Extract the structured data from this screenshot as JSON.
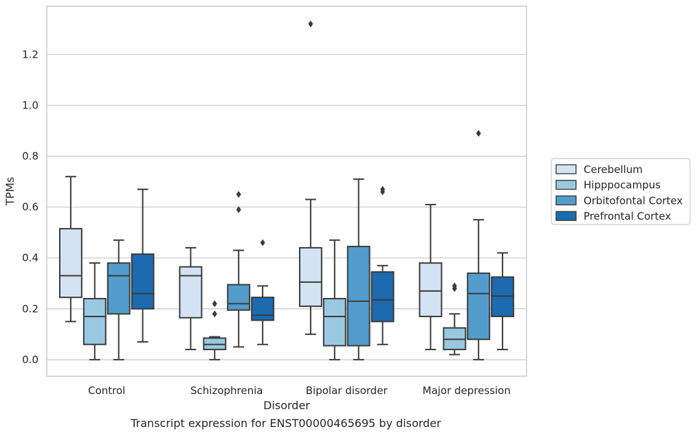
{
  "chart_data": {
    "type": "box",
    "title": "",
    "caption": "Transcript expression for ENST00000465695 by disorder",
    "xlabel": "Disorder",
    "ylabel": "TPMs",
    "ylim": [
      -0.065,
      1.39
    ],
    "yticks": [
      "0.0",
      "0.2",
      "0.4",
      "0.6",
      "0.8",
      "1.0",
      "1.2"
    ],
    "grid": "horizontal",
    "legend_position": "right",
    "categories": [
      "Control",
      "Schizophrenia",
      "Bipolar disorder",
      "Major depression"
    ],
    "series": [
      {
        "name": "Cerebellum",
        "color": "#d3e3f3",
        "boxes": [
          {
            "min": 0.15,
            "q1": 0.245,
            "median": 0.33,
            "q3": 0.515,
            "max": 0.72,
            "outliers": []
          },
          {
            "min": 0.04,
            "q1": 0.165,
            "median": 0.33,
            "q3": 0.365,
            "max": 0.44,
            "outliers": []
          },
          {
            "min": 0.1,
            "q1": 0.21,
            "median": 0.305,
            "q3": 0.44,
            "max": 0.63,
            "outliers": [
              1.32
            ]
          },
          {
            "min": 0.04,
            "q1": 0.17,
            "median": 0.27,
            "q3": 0.38,
            "max": 0.61,
            "outliers": []
          }
        ]
      },
      {
        "name": "Hipppocampus",
        "color": "#9ac8e0",
        "boxes": [
          {
            "min": 0.0,
            "q1": 0.06,
            "median": 0.17,
            "q3": 0.24,
            "max": 0.38,
            "outliers": []
          },
          {
            "min": 0.0,
            "q1": 0.04,
            "median": 0.06,
            "q3": 0.085,
            "max": 0.09,
            "outliers": [
              0.18,
              0.22
            ]
          },
          {
            "min": 0.0,
            "q1": 0.055,
            "median": 0.17,
            "q3": 0.24,
            "max": 0.47,
            "outliers": []
          },
          {
            "min": 0.02,
            "q1": 0.04,
            "median": 0.08,
            "q3": 0.125,
            "max": 0.18,
            "outliers": [
              0.28,
              0.29
            ]
          }
        ]
      },
      {
        "name": "Orbitofontal Cortex",
        "color": "#529dcc",
        "boxes": [
          {
            "min": 0.0,
            "q1": 0.18,
            "median": 0.33,
            "q3": 0.38,
            "max": 0.47,
            "outliers": []
          },
          {
            "min": 0.05,
            "q1": 0.195,
            "median": 0.22,
            "q3": 0.295,
            "max": 0.43,
            "outliers": [
              0.59,
              0.65
            ]
          },
          {
            "min": 0.0,
            "q1": 0.055,
            "median": 0.23,
            "q3": 0.445,
            "max": 0.71,
            "outliers": []
          },
          {
            "min": 0.0,
            "q1": 0.08,
            "median": 0.26,
            "q3": 0.34,
            "max": 0.55,
            "outliers": [
              0.89
            ]
          }
        ]
      },
      {
        "name": "Prefrontal Cortex",
        "color": "#1c6aaf",
        "boxes": [
          {
            "min": 0.07,
            "q1": 0.2,
            "median": 0.26,
            "q3": 0.415,
            "max": 0.67,
            "outliers": []
          },
          {
            "min": 0.06,
            "q1": 0.155,
            "median": 0.175,
            "q3": 0.245,
            "max": 0.29,
            "outliers": [
              0.46
            ]
          },
          {
            "min": 0.06,
            "q1": 0.15,
            "median": 0.235,
            "q3": 0.345,
            "max": 0.37,
            "outliers": [
              0.66,
              0.67
            ]
          },
          {
            "min": 0.04,
            "q1": 0.17,
            "median": 0.25,
            "q3": 0.325,
            "max": 0.42,
            "outliers": []
          }
        ]
      }
    ]
  }
}
